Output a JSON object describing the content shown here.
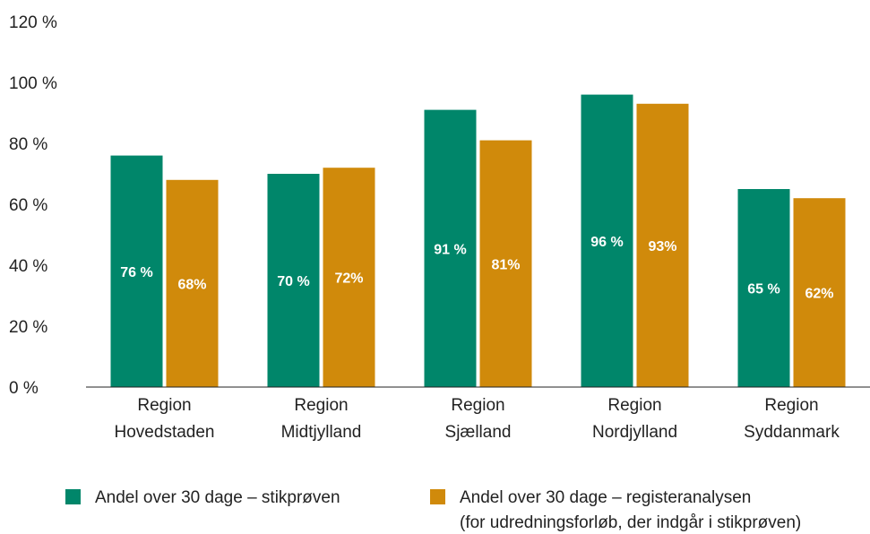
{
  "chart_data": {
    "type": "bar",
    "categories": [
      [
        "Region",
        "Hovedstaden"
      ],
      [
        "Region",
        "Midtjylland"
      ],
      [
        "Region",
        "Sjælland"
      ],
      [
        "Region",
        "Nordjylland"
      ],
      [
        "Region",
        "Syddanmark"
      ]
    ],
    "series": [
      {
        "name": "Andel over 30 dage – stikprøven",
        "color": "#00866A",
        "values": [
          76,
          70,
          91,
          96,
          65
        ],
        "labels": [
          "76 %",
          "70 %",
          "91 %",
          "96 %",
          "65 %"
        ]
      },
      {
        "name": "Andel over 30 dage – registeranalysen",
        "name_line2": "(for udredningsforløb, der indgår i stikprøven)",
        "color": "#D08A0B",
        "values": [
          68,
          72,
          81,
          93,
          62
        ],
        "labels": [
          "68%",
          "72%",
          "81%",
          "93%",
          "62%"
        ]
      }
    ],
    "yticks": [
      "0 %",
      "20 %",
      "40 %",
      "60 %",
      "80 %",
      "100 %",
      "120 %"
    ],
    "ylim": [
      0,
      120
    ],
    "title": "",
    "xlabel": "",
    "ylabel": "",
    "grid": false,
    "legend": "bottom"
  }
}
